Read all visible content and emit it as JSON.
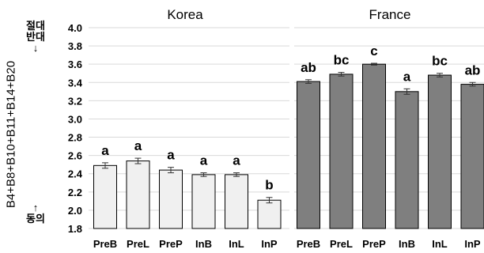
{
  "chart_data": {
    "type": "bar",
    "ylabel": "B4+B8+B10+B11+B14+B20",
    "y_top_annotation": "절대\n반대\n↓",
    "y_bottom_annotation": "↑\n동의",
    "ylim": [
      1.8,
      4.0
    ],
    "yticks": [
      "1.8",
      "2.0",
      "2.2",
      "2.4",
      "2.6",
      "2.8",
      "3.0",
      "3.2",
      "3.4",
      "3.6",
      "3.8",
      "4.0"
    ],
    "grid": true,
    "panels": [
      {
        "title": "Korea",
        "bar_color": "#f0f0f0",
        "categories": [
          "PreB",
          "PreL",
          "PreP",
          "InB",
          "InL",
          "InP"
        ],
        "values": [
          2.49,
          2.54,
          2.44,
          2.39,
          2.39,
          2.11
        ],
        "errors": [
          0.03,
          0.03,
          0.03,
          0.02,
          0.02,
          0.03
        ],
        "letters": [
          "a",
          "a",
          "a",
          "a",
          "a",
          "b"
        ]
      },
      {
        "title": "France",
        "bar_color": "#7f7f7f",
        "categories": [
          "PreB",
          "PreL",
          "PreP",
          "InB",
          "InL",
          "InP"
        ],
        "values": [
          3.41,
          3.49,
          3.6,
          3.3,
          3.48,
          3.38
        ],
        "errors": [
          0.02,
          0.02,
          0.01,
          0.03,
          0.02,
          0.02
        ],
        "letters": [
          "ab",
          "bc",
          "c",
          "a",
          "bc",
          "ab"
        ]
      }
    ]
  }
}
